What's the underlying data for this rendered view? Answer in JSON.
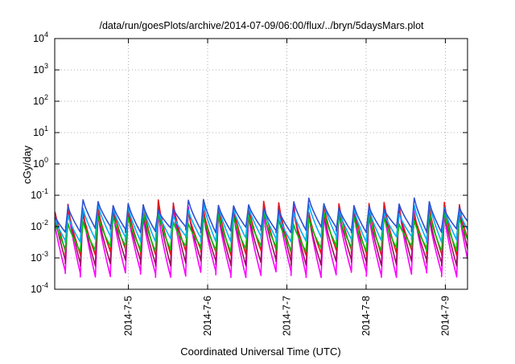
{
  "chart_data": {
    "type": "line",
    "title": "/data/run/goesPlots/archive/2014-07-09/06:00/flux/../bryn/5daysMars.plot",
    "xlabel": "Coordinated Universal Time (UTC)",
    "ylabel": "cGy/day",
    "yscale": "log",
    "ylim": [
      0.0001,
      10000
    ],
    "xlim_days": [
      4.07,
      9.28
    ],
    "xticks": [
      {
        "label": "2014-7-5",
        "day": 5
      },
      {
        "label": "2014-7-6",
        "day": 6
      },
      {
        "label": "2014-7-7",
        "day": 7
      },
      {
        "label": "2014-7-8",
        "day": 8
      },
      {
        "label": "2014-7-9",
        "day": 9
      }
    ],
    "yticks": [
      {
        "base": "10",
        "exp": "-4",
        "value": 0.0001
      },
      {
        "base": "10",
        "exp": "-3",
        "value": 0.001
      },
      {
        "base": "10",
        "exp": "-2",
        "value": 0.01
      },
      {
        "base": "10",
        "exp": "-1",
        "value": 0.1
      },
      {
        "base": "10",
        "exp": "0",
        "value": 1
      },
      {
        "base": "10",
        "exp": "1",
        "value": 10
      },
      {
        "base": "10",
        "exp": "2",
        "value": 100
      },
      {
        "base": "10",
        "exp": "3",
        "value": 1000
      },
      {
        "base": "10",
        "exp": "4",
        "value": 10000
      }
    ],
    "grid": true,
    "legend": "none",
    "pattern": {
      "description": "sawtooth: each ~0.19-day cycle rises sharply to a peak then decays",
      "cycle_days": 0.19
    },
    "series": [
      {
        "color": "#ff00ff",
        "peak": 0.03,
        "trough": 0.0003
      },
      {
        "color": "#9b0f5f",
        "peak": 0.035,
        "trough": 0.0007
      },
      {
        "color": "#e41a1c",
        "peak": 0.045,
        "trough": 0.0015
      },
      {
        "color": "#00c000",
        "peak": 0.02,
        "trough": 0.002
      },
      {
        "color": "#00b0ff",
        "peak": 0.038,
        "trough": 0.004
      },
      {
        "color": "#3050d0",
        "peak": 0.05,
        "trough": 0.008
      }
    ]
  }
}
